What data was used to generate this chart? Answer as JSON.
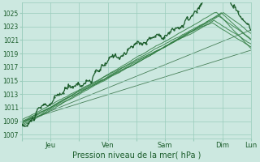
{
  "title": "Pression niveau de la mer( hPa )",
  "xlim": [
    0,
    5.0
  ],
  "ylim": [
    1006.5,
    1026.5
  ],
  "yticks": [
    1007,
    1009,
    1011,
    1013,
    1015,
    1017,
    1019,
    1021,
    1023,
    1025
  ],
  "xtick_labels": [
    "",
    "Jeu",
    "",
    "Ven",
    "",
    "Sam",
    "",
    "Dim",
    "Lun"
  ],
  "xtick_positions": [
    0.0,
    0.625,
    1.25,
    1.875,
    2.5,
    3.125,
    3.75,
    4.375,
    5.0
  ],
  "bg_color": "#cce8e0",
  "grid_color": "#99ccbb",
  "line_color": "#1a5c2a",
  "line_color2": "#2d7a3e"
}
